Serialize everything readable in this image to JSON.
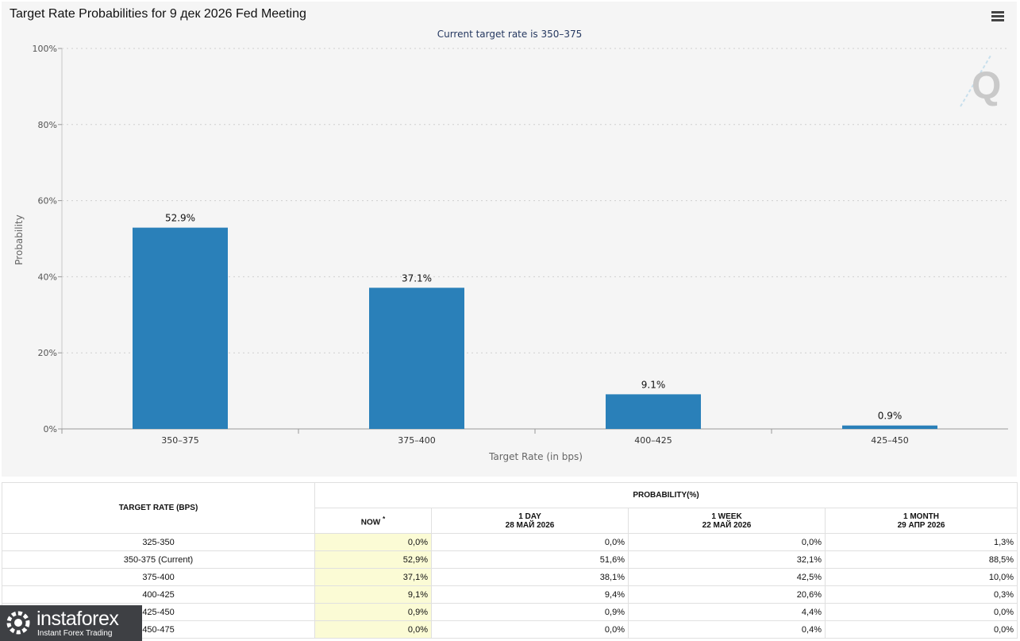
{
  "title": "Target Rate Probabilities for 9 дек 2026 Fed Meeting",
  "subtitle": "Current target rate is 350–375",
  "menu_icon": "hamburger-menu-icon",
  "chart_data": {
    "type": "bar",
    "categories": [
      "350–375",
      "375–400",
      "400–425",
      "425–450"
    ],
    "values": [
      52.9,
      37.1,
      9.1,
      0.9
    ],
    "data_labels": [
      "52.9%",
      "37.1%",
      "9.1%",
      "0.9%"
    ],
    "xlabel": "Target Rate (in bps)",
    "ylabel": "Probability",
    "ylim": [
      0,
      100
    ],
    "y_ticks": [
      "0%",
      "20%",
      "40%",
      "60%",
      "80%",
      "100%"
    ],
    "y_tick_values": [
      0,
      20,
      40,
      60,
      80,
      100
    ],
    "grid": true,
    "bar_color": "#2a80b9"
  },
  "table": {
    "col_rate_header": "TARGET RATE (BPS)",
    "prob_header": "PROBABILITY(%)",
    "now_header": "NOW",
    "now_mark": "*",
    "cols": [
      {
        "label": "1 DAY",
        "date": "28 МАЙ 2026"
      },
      {
        "label": "1 WEEK",
        "date": "22 МАЙ 2026"
      },
      {
        "label": "1 MONTH",
        "date": "29 АПР 2026"
      }
    ],
    "rows": [
      {
        "rate": "325-350",
        "now": "0,0%",
        "day": "0,0%",
        "week": "0,0%",
        "month": "1,3%"
      },
      {
        "rate": "350-375 (Current)",
        "now": "52,9%",
        "day": "51,6%",
        "week": "32,1%",
        "month": "88,5%"
      },
      {
        "rate": "375-400",
        "now": "37,1%",
        "day": "38,1%",
        "week": "42,5%",
        "month": "10,0%"
      },
      {
        "rate": "400-425",
        "now": "9,1%",
        "day": "9,4%",
        "week": "20,6%",
        "month": "0,3%"
      },
      {
        "rate": "425-450",
        "now": "0,9%",
        "day": "0,9%",
        "week": "4,4%",
        "month": "0,0%"
      },
      {
        "rate": "450-475",
        "now": "0,0%",
        "day": "0,0%",
        "week": "0,4%",
        "month": "0,0%"
      }
    ]
  },
  "watermark": {
    "name": "instaforex",
    "tagline": "Instant Forex Trading"
  }
}
